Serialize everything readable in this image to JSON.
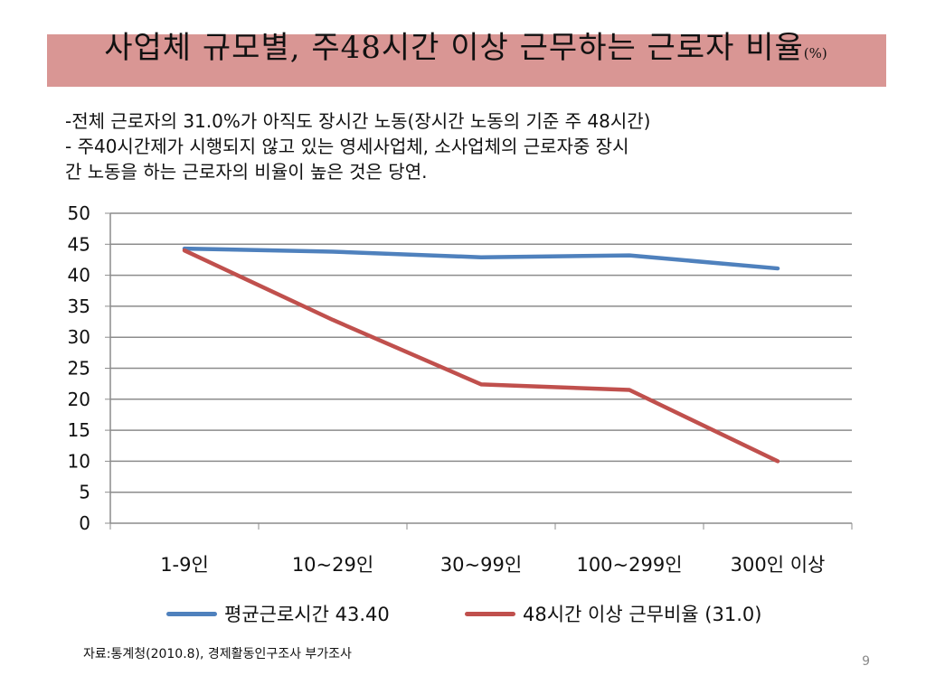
{
  "slide": {
    "title": "사업체 규모별, 주48시간 이상 근무하는 근로자 비율",
    "title_unit": "(%)",
    "notes": [
      "-전체 근로자의 31.0%가 아직도 장시간 노동(장시간 노동의 기준 주 48시간)",
      "- 주40시간제가 시행되지 않고 있는 영세사업체, 소사업체의 근로자중 장시",
      "간 노동을 하는 근로자의 비율이 높은 것은 당연."
    ],
    "source": "자료:통계청(2010.8), 경제활동인구조사 부가조사",
    "page_number": "9"
  },
  "chart_data": {
    "type": "line",
    "categories": [
      "1-9인",
      "10~29인",
      "30~99인",
      "100~299인",
      "300인 이상"
    ],
    "series": [
      {
        "name": "평균근로시간 43.40",
        "color": "#4f81bd",
        "values": [
          44.3,
          43.8,
          42.9,
          43.2,
          41.1
        ]
      },
      {
        "name": "48시간 이상 근무비율 (31.0)",
        "color": "#c0504d",
        "values": [
          44.0,
          32.8,
          22.4,
          21.5,
          10.0
        ]
      }
    ],
    "ylim": [
      0,
      50
    ],
    "yticks": [
      "0",
      "5",
      "10",
      "15",
      "20",
      "25",
      "30",
      "35",
      "40",
      "45",
      "50"
    ],
    "grid": true,
    "legend": "bottom"
  }
}
